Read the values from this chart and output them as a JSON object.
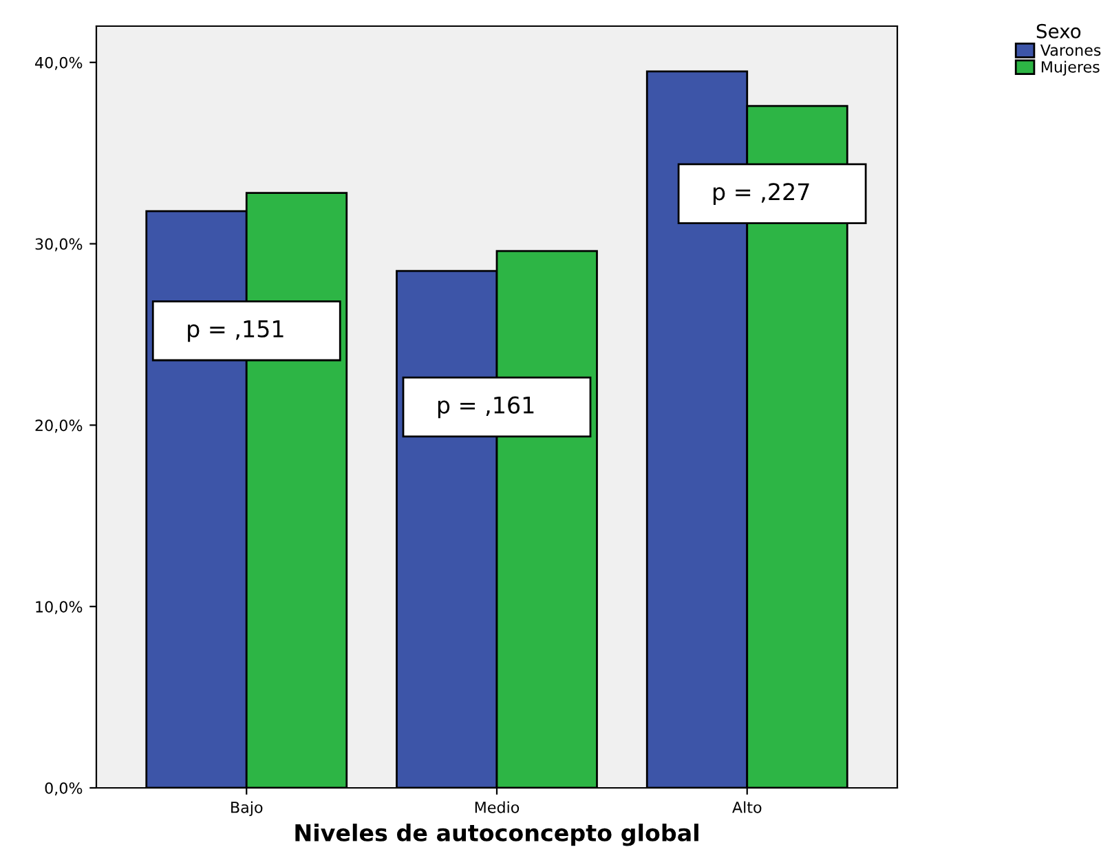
{
  "chart_data": {
    "type": "bar",
    "xlabel": "Niveles de autoconcepto global",
    "legend_title": "Sexo",
    "legend": "top right",
    "categories": [
      "Bajo",
      "Medio",
      "Alto"
    ],
    "series": [
      {
        "name": "Varones",
        "color": "#3d55a8",
        "values": [
          31.8,
          28.5,
          39.5
        ]
      },
      {
        "name": "Mujeres",
        "color": "#2db545",
        "values": [
          32.8,
          29.6,
          37.6
        ]
      }
    ],
    "ylim": [
      0,
      42
    ],
    "yticks": [
      {
        "value": 0,
        "label": "0,0%"
      },
      {
        "value": 10,
        "label": "10,0%"
      },
      {
        "value": 20,
        "label": "20,0%"
      },
      {
        "value": 30,
        "label": "30,0%"
      },
      {
        "value": 40,
        "label": "40,0%"
      }
    ],
    "annotations": [
      "p = ,151",
      "p = ,161",
      "p = ,227"
    ],
    "grid": false
  }
}
